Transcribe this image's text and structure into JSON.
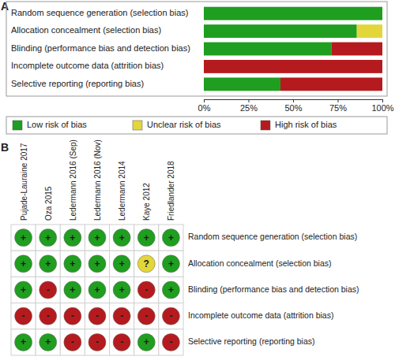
{
  "chart_data": [
    {
      "type": "bar",
      "title": "A",
      "orientation": "horizontal",
      "stacked": true,
      "legend": "bottom",
      "tick_labels": "x",
      "categories": [
        "Random sequence generation (selection bias)",
        "Allocation concealment (selection bias)",
        "Blinding (performance bias and detection bias)",
        "Incomplete outcome data (attrition bias)",
        "Selective reporting (reporting bias)"
      ],
      "series": [
        {
          "name": "Low risk of bias",
          "color": "#1f9e1f",
          "values": [
            100,
            85.7,
            71.4,
            0,
            42.9
          ]
        },
        {
          "name": "Unclear risk of bias",
          "color": "#e3d63a",
          "values": [
            0,
            14.3,
            0,
            0,
            0
          ]
        },
        {
          "name": "High risk of bias",
          "color": "#b51b1e",
          "values": [
            0,
            0,
            28.6,
            100,
            57.1
          ]
        }
      ],
      "xlim": [
        0,
        100
      ],
      "xticks": [
        {
          "value": 0,
          "label": "0%"
        },
        {
          "value": 25,
          "label": "25%"
        },
        {
          "value": 50,
          "label": "50%"
        },
        {
          "value": 75,
          "label": "75%"
        },
        {
          "value": 100,
          "label": "100%"
        }
      ]
    },
    {
      "type": "matrix",
      "title": "B",
      "columns": [
        "Pujade-Lauraine 2017",
        "Oza 2015",
        "Ledermann 2016 (Sep)",
        "Ledermann 2016 (Nov)",
        "Ledermann 2014",
        "Kaye 2012",
        "Friedlander 2018"
      ],
      "rows": [
        "Random sequence generation (selection bias)",
        "Allocation concealment (selection bias)",
        "Blinding (performance bias and detection bias)",
        "Incomplete outcome data (attrition bias)",
        "Selective reporting (reporting bias)"
      ],
      "symbols": [
        "+",
        "?",
        "-"
      ],
      "colors": [
        "#1f9e1f",
        "#e3d63a",
        "#b51b1e"
      ],
      "cells": [
        [
          "+",
          "+",
          "+",
          "+",
          "+",
          "+",
          "+"
        ],
        [
          "+",
          "+",
          "+",
          "+",
          "+",
          "?",
          "+"
        ],
        [
          "+",
          "-",
          "+",
          "+",
          "+",
          "-",
          "+"
        ],
        [
          "-",
          "-",
          "-",
          "-",
          "-",
          "-",
          "-"
        ],
        [
          "+",
          "+",
          "-",
          "-",
          "-",
          "+",
          "-"
        ]
      ]
    }
  ]
}
